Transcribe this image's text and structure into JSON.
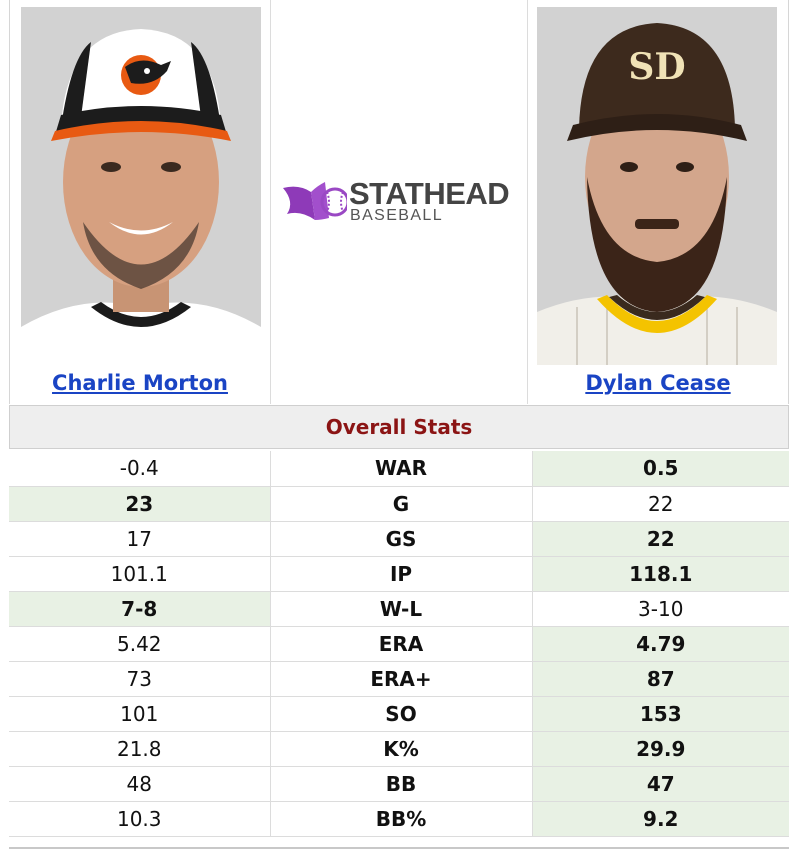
{
  "players": {
    "left": {
      "name": "Charlie Morton",
      "photo_alt": "Charlie Morton headshot",
      "cap_icon": "orioles-bird-icon"
    },
    "right": {
      "name": "Dylan Cease",
      "photo_alt": "Dylan Cease headshot",
      "cap_icon": "padres-sd-icon"
    }
  },
  "logo": {
    "line1": "STATHEAD",
    "line2": "BASEBALL"
  },
  "section_title": "Overall Stats",
  "colors": {
    "link": "#1a44c4",
    "section_title": "#8b1414",
    "winner_bg": "#e8f1e4"
  },
  "stats": [
    {
      "label": "WAR",
      "left": "-0.4",
      "right": "0.5",
      "winner": "right"
    },
    {
      "label": "G",
      "left": "23",
      "right": "22",
      "winner": "left"
    },
    {
      "label": "GS",
      "left": "17",
      "right": "22",
      "winner": "right"
    },
    {
      "label": "IP",
      "left": "101.1",
      "right": "118.1",
      "winner": "right"
    },
    {
      "label": "W-L",
      "left": "7-8",
      "right": "3-10",
      "winner": "left"
    },
    {
      "label": "ERA",
      "left": "5.42",
      "right": "4.79",
      "winner": "right"
    },
    {
      "label": "ERA+",
      "left": "73",
      "right": "87",
      "winner": "right"
    },
    {
      "label": "SO",
      "left": "101",
      "right": "153",
      "winner": "right"
    },
    {
      "label": "K%",
      "left": "21.8",
      "right": "29.9",
      "winner": "right"
    },
    {
      "label": "BB",
      "left": "48",
      "right": "47",
      "winner": "right"
    },
    {
      "label": "BB%",
      "left": "10.3",
      "right": "9.2",
      "winner": "right"
    }
  ]
}
